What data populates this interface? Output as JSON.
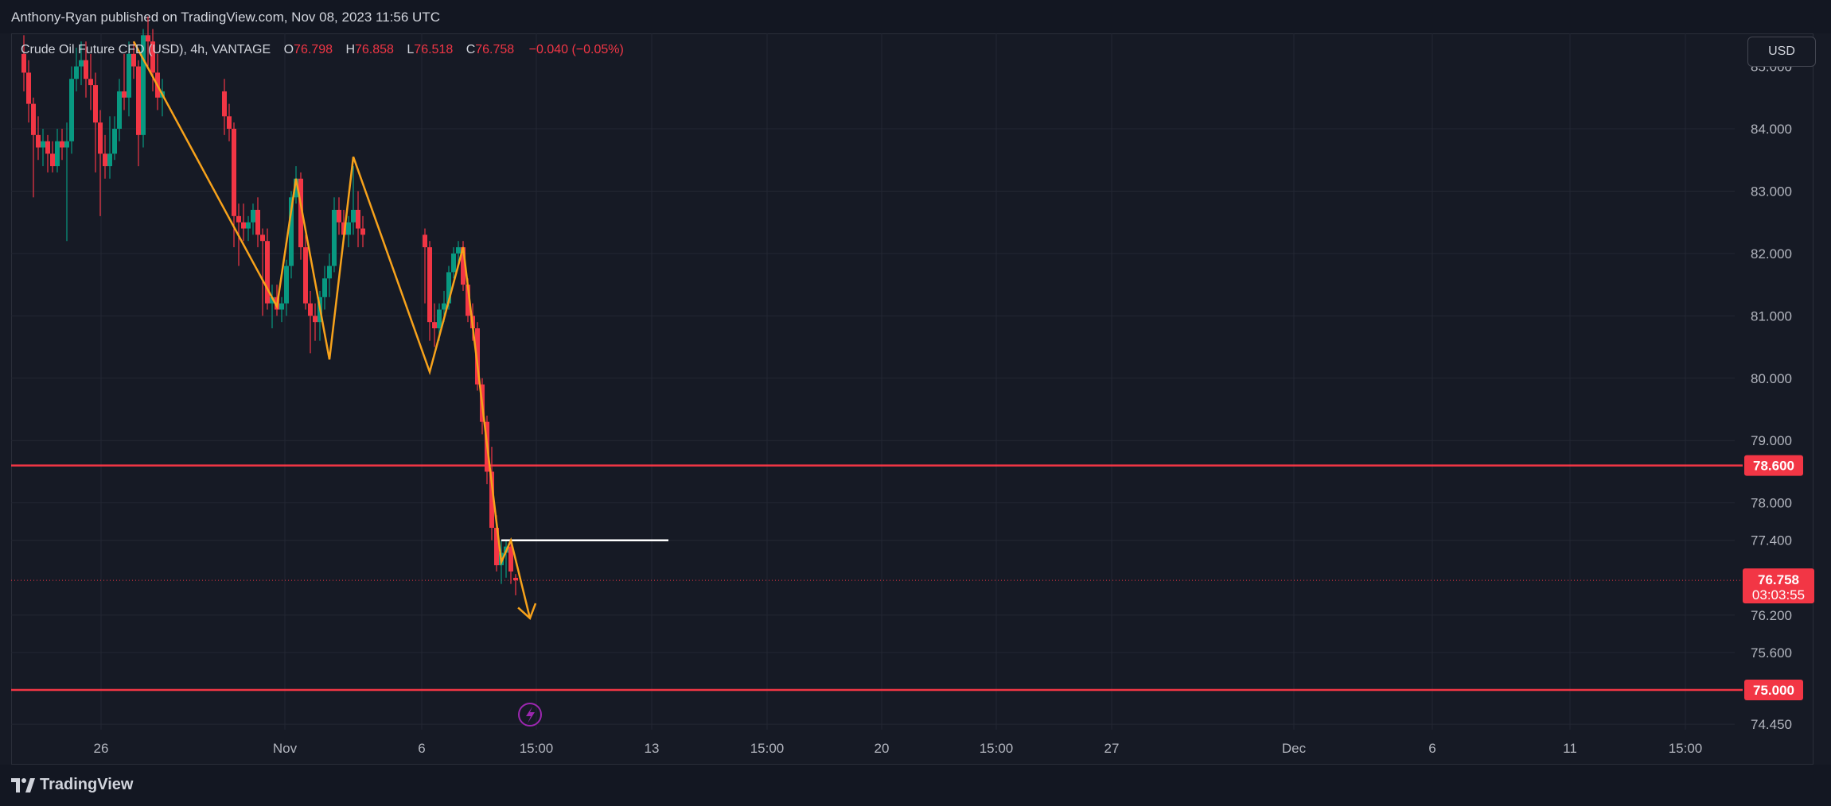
{
  "header": {
    "publisher": "Anthony-Ryan published on TradingView.com, Nov 08, 2023 11:56 UTC"
  },
  "legend": {
    "symbol": "Crude Oil Future CFD (USD), 4h, VANTAGE",
    "open_label": "O",
    "open": "76.798",
    "high_label": "H",
    "high": "76.858",
    "low_label": "L",
    "low": "76.518",
    "close_label": "C",
    "close": "76.758",
    "change": "−0.040 (−0.05%)"
  },
  "currency_button": "USD",
  "footer": {
    "brand": "TradingView"
  },
  "colors": {
    "up": "#089981",
    "down": "#f23645",
    "zigzag": "#f7a21b",
    "level": "#f23645",
    "white_line": "#ffffff",
    "alert": "#9c27b0"
  },
  "icons": [
    "tradingview-logo-icon",
    "lightning-alert-icon"
  ],
  "chart_data": {
    "type": "candlestick",
    "interval": "4h",
    "y_axis": {
      "ticks": [
        84.0,
        83.0,
        82.0,
        81.0,
        80.0,
        79.0,
        78.0,
        77.4,
        76.2,
        75.6,
        74.45
      ],
      "tick_labels": [
        "84.000",
        "83.000",
        "82.000",
        "81.000",
        "80.000",
        "79.000",
        "78.000",
        "77.400",
        "76.200",
        "75.600",
        "74.450"
      ],
      "partial_top_label": "85.000",
      "range": [
        74.1,
        85.5
      ]
    },
    "x_axis": {
      "tick_labels": [
        "26",
        "Nov",
        "6",
        "15:00",
        "13",
        "15:00",
        "20",
        "15:00",
        "27",
        "Dec",
        "6",
        "11",
        "15:00"
      ],
      "date_range": [
        "2023-10-23",
        "2023-12-18"
      ]
    },
    "horizontal_levels": [
      {
        "price": 78.6,
        "label": "78.600",
        "color": "#f23645"
      },
      {
        "price": 75.0,
        "label": "75.000",
        "color": "#f23645"
      }
    ],
    "current_price": {
      "price": 76.758,
      "label": "76.758",
      "countdown": "03:03:55"
    },
    "candles": [
      {
        "t": "2023-10-23 00:00",
        "o": 85.2,
        "h": 85.5,
        "l": 84.6,
        "c": 84.9
      },
      {
        "t": "2023-10-23 04:00",
        "o": 84.9,
        "h": 85.1,
        "l": 84.1,
        "c": 84.4
      },
      {
        "t": "2023-10-23 08:00",
        "o": 84.4,
        "h": 84.5,
        "l": 82.9,
        "c": 83.9
      },
      {
        "t": "2023-10-23 12:00",
        "o": 83.9,
        "h": 84.2,
        "l": 83.5,
        "c": 83.7
      },
      {
        "t": "2023-10-23 16:00",
        "o": 83.7,
        "h": 84.0,
        "l": 83.4,
        "c": 83.8
      },
      {
        "t": "2023-10-23 20:00",
        "o": 83.8,
        "h": 83.9,
        "l": 83.3,
        "c": 83.6
      },
      {
        "t": "2023-10-24 00:00",
        "o": 83.6,
        "h": 83.8,
        "l": 83.3,
        "c": 83.4
      },
      {
        "t": "2023-10-24 04:00",
        "o": 83.4,
        "h": 84.0,
        "l": 83.3,
        "c": 83.8
      },
      {
        "t": "2023-10-24 08:00",
        "o": 83.8,
        "h": 84.0,
        "l": 83.5,
        "c": 83.7
      },
      {
        "t": "2023-10-24 12:00",
        "o": 83.7,
        "h": 84.1,
        "l": 82.2,
        "c": 83.8
      },
      {
        "t": "2023-10-24 16:00",
        "o": 83.8,
        "h": 85.0,
        "l": 83.6,
        "c": 84.8
      },
      {
        "t": "2023-10-24 20:00",
        "o": 84.8,
        "h": 85.3,
        "l": 84.6,
        "c": 85.0
      },
      {
        "t": "2023-10-25 00:00",
        "o": 85.0,
        "h": 85.4,
        "l": 84.7,
        "c": 85.1
      },
      {
        "t": "2023-10-25 04:00",
        "o": 85.1,
        "h": 85.4,
        "l": 84.5,
        "c": 84.8
      },
      {
        "t": "2023-10-25 08:00",
        "o": 84.8,
        "h": 85.2,
        "l": 84.3,
        "c": 84.7
      },
      {
        "t": "2023-10-25 12:00",
        "o": 84.7,
        "h": 84.9,
        "l": 83.3,
        "c": 84.1
      },
      {
        "t": "2023-10-25 16:00",
        "o": 84.1,
        "h": 84.3,
        "l": 82.6,
        "c": 83.6
      },
      {
        "t": "2023-10-25 20:00",
        "o": 83.6,
        "h": 83.9,
        "l": 83.2,
        "c": 83.4
      },
      {
        "t": "2023-10-26 00:00",
        "o": 83.4,
        "h": 84.2,
        "l": 83.2,
        "c": 83.6
      },
      {
        "t": "2023-10-26 04:00",
        "o": 83.6,
        "h": 84.2,
        "l": 83.5,
        "c": 84.0
      },
      {
        "t": "2023-10-26 08:00",
        "o": 84.0,
        "h": 84.8,
        "l": 83.8,
        "c": 84.6
      },
      {
        "t": "2023-10-26 12:00",
        "o": 84.6,
        "h": 85.2,
        "l": 84.3,
        "c": 84.5
      },
      {
        "t": "2023-10-26 16:00",
        "o": 84.5,
        "h": 85.4,
        "l": 84.2,
        "c": 85.2
      },
      {
        "t": "2023-10-26 20:00",
        "o": 85.2,
        "h": 85.4,
        "l": 84.8,
        "c": 85.0
      },
      {
        "t": "2023-10-27 00:00",
        "o": 85.0,
        "h": 85.1,
        "l": 83.4,
        "c": 83.9
      },
      {
        "t": "2023-10-27 04:00",
        "o": 83.9,
        "h": 85.6,
        "l": 83.7,
        "c": 85.5
      },
      {
        "t": "2023-10-27 08:00",
        "o": 85.5,
        "h": 85.8,
        "l": 85.0,
        "c": 85.4
      },
      {
        "t": "2023-10-27 12:00",
        "o": 85.4,
        "h": 85.6,
        "l": 84.6,
        "c": 84.9
      },
      {
        "t": "2023-10-27 16:00",
        "o": 84.9,
        "h": 85.2,
        "l": 84.3,
        "c": 84.5
      },
      {
        "t": "2023-10-27 20:00",
        "o": 84.5,
        "h": 84.8,
        "l": 84.2,
        "c": 84.6
      },
      {
        "t": "2023-10-30 00:00",
        "o": 84.6,
        "h": 84.8,
        "l": 83.9,
        "c": 84.2
      },
      {
        "t": "2023-10-30 04:00",
        "o": 84.2,
        "h": 84.4,
        "l": 83.8,
        "c": 84.0
      },
      {
        "t": "2023-10-30 08:00",
        "o": 84.0,
        "h": 84.1,
        "l": 82.1,
        "c": 82.6
      },
      {
        "t": "2023-10-30 12:00",
        "o": 82.6,
        "h": 82.8,
        "l": 81.8,
        "c": 82.5
      },
      {
        "t": "2023-10-30 16:00",
        "o": 82.5,
        "h": 82.8,
        "l": 82.2,
        "c": 82.4
      },
      {
        "t": "2023-10-30 20:00",
        "o": 82.4,
        "h": 82.6,
        "l": 82.2,
        "c": 82.5
      },
      {
        "t": "2023-10-31 00:00",
        "o": 82.5,
        "h": 82.8,
        "l": 82.3,
        "c": 82.7
      },
      {
        "t": "2023-10-31 04:00",
        "o": 82.7,
        "h": 82.9,
        "l": 82.1,
        "c": 82.3
      },
      {
        "t": "2023-10-31 08:00",
        "o": 82.3,
        "h": 82.4,
        "l": 81.0,
        "c": 82.2
      },
      {
        "t": "2023-10-31 12:00",
        "o": 82.2,
        "h": 82.4,
        "l": 81.1,
        "c": 81.2
      },
      {
        "t": "2023-10-31 16:00",
        "o": 81.2,
        "h": 81.5,
        "l": 80.8,
        "c": 81.3
      },
      {
        "t": "2023-10-31 20:00",
        "o": 81.3,
        "h": 81.5,
        "l": 81.0,
        "c": 81.1
      },
      {
        "t": "2023-11-01 00:00",
        "o": 81.1,
        "h": 81.3,
        "l": 80.9,
        "c": 81.2
      },
      {
        "t": "2023-11-01 04:00",
        "o": 81.2,
        "h": 81.9,
        "l": 81.0,
        "c": 81.8
      },
      {
        "t": "2023-11-01 08:00",
        "o": 81.8,
        "h": 83.0,
        "l": 81.6,
        "c": 82.9
      },
      {
        "t": "2023-11-01 12:00",
        "o": 82.9,
        "h": 83.4,
        "l": 82.8,
        "c": 83.2
      },
      {
        "t": "2023-11-01 16:00",
        "o": 83.2,
        "h": 83.3,
        "l": 81.9,
        "c": 82.1
      },
      {
        "t": "2023-11-01 20:00",
        "o": 82.1,
        "h": 82.3,
        "l": 81.1,
        "c": 81.2
      },
      {
        "t": "2023-11-02 00:00",
        "o": 81.2,
        "h": 81.4,
        "l": 80.4,
        "c": 81.0
      },
      {
        "t": "2023-11-02 04:00",
        "o": 81.0,
        "h": 81.2,
        "l": 80.6,
        "c": 80.9
      },
      {
        "t": "2023-11-02 08:00",
        "o": 80.9,
        "h": 81.4,
        "l": 80.6,
        "c": 81.3
      },
      {
        "t": "2023-11-02 12:00",
        "o": 81.3,
        "h": 81.8,
        "l": 81.1,
        "c": 81.6
      },
      {
        "t": "2023-11-02 16:00",
        "o": 81.6,
        "h": 82.0,
        "l": 81.3,
        "c": 81.8
      },
      {
        "t": "2023-11-02 20:00",
        "o": 81.8,
        "h": 82.9,
        "l": 81.7,
        "c": 82.7
      },
      {
        "t": "2023-11-03 00:00",
        "o": 82.7,
        "h": 82.9,
        "l": 82.3,
        "c": 82.5
      },
      {
        "t": "2023-11-03 04:00",
        "o": 82.5,
        "h": 82.7,
        "l": 82.2,
        "c": 82.3
      },
      {
        "t": "2023-11-03 08:00",
        "o": 82.3,
        "h": 82.6,
        "l": 82.1,
        "c": 82.5
      },
      {
        "t": "2023-11-03 12:00",
        "o": 82.5,
        "h": 83.4,
        "l": 82.3,
        "c": 82.7
      },
      {
        "t": "2023-11-03 16:00",
        "o": 82.7,
        "h": 83.0,
        "l": 82.1,
        "c": 82.4
      },
      {
        "t": "2023-11-03 20:00",
        "o": 82.4,
        "h": 82.6,
        "l": 82.1,
        "c": 82.3
      },
      {
        "t": "2023-11-06 00:00",
        "o": 82.3,
        "h": 82.4,
        "l": 81.2,
        "c": 82.1
      },
      {
        "t": "2023-11-06 04:00",
        "o": 82.1,
        "h": 82.2,
        "l": 80.6,
        "c": 80.9
      },
      {
        "t": "2023-11-06 08:00",
        "o": 80.9,
        "h": 81.2,
        "l": 80.5,
        "c": 80.8
      },
      {
        "t": "2023-11-06 12:00",
        "o": 80.8,
        "h": 81.2,
        "l": 80.6,
        "c": 81.1
      },
      {
        "t": "2023-11-06 16:00",
        "o": 81.1,
        "h": 81.4,
        "l": 80.9,
        "c": 81.2
      },
      {
        "t": "2023-11-06 20:00",
        "o": 81.2,
        "h": 81.8,
        "l": 81.1,
        "c": 81.7
      },
      {
        "t": "2023-11-07 00:00",
        "o": 81.7,
        "h": 82.1,
        "l": 81.6,
        "c": 82.0
      },
      {
        "t": "2023-11-07 04:00",
        "o": 82.0,
        "h": 82.2,
        "l": 81.8,
        "c": 82.1
      },
      {
        "t": "2023-11-07 08:00",
        "o": 82.1,
        "h": 82.2,
        "l": 81.4,
        "c": 81.5
      },
      {
        "t": "2023-11-07 12:00",
        "o": 81.5,
        "h": 81.6,
        "l": 80.9,
        "c": 81.0
      },
      {
        "t": "2023-11-07 16:00",
        "o": 81.0,
        "h": 81.2,
        "l": 80.6,
        "c": 80.8
      },
      {
        "t": "2023-11-07 20:00",
        "o": 80.8,
        "h": 80.9,
        "l": 79.8,
        "c": 79.9
      },
      {
        "t": "2023-11-08 00:00",
        "o": 79.9,
        "h": 80.0,
        "l": 79.1,
        "c": 79.3
      },
      {
        "t": "2023-11-08 04:00",
        "o": 79.3,
        "h": 79.4,
        "l": 78.3,
        "c": 78.5
      },
      {
        "t": "2023-11-08 08:00",
        "o": 78.5,
        "h": 78.9,
        "l": 77.4,
        "c": 77.6
      },
      {
        "t": "2023-11-08 12:00",
        "o": 77.6,
        "h": 77.8,
        "l": 76.9,
        "c": 77.0
      },
      {
        "t": "2023-11-08 16:00",
        "o": 77.0,
        "h": 77.4,
        "l": 76.7,
        "c": 77.2
      },
      {
        "t": "2023-11-08 20:00",
        "o": 77.2,
        "h": 77.4,
        "l": 76.8,
        "c": 77.3
      },
      {
        "t": "2023-11-09 00:00",
        "o": 77.3,
        "h": 77.4,
        "l": 76.7,
        "c": 76.9
      },
      {
        "t": "2023-11-09 04:00",
        "o": 76.798,
        "h": 76.858,
        "l": 76.518,
        "c": 76.758
      }
    ],
    "zigzag": [
      {
        "t": "2023-10-26 20:00",
        "p": 85.4
      },
      {
        "t": "2023-10-31 20:00",
        "p": 81.15
      },
      {
        "t": "2023-11-01 12:00",
        "p": 83.2
      },
      {
        "t": "2023-11-02 16:00",
        "p": 80.3
      },
      {
        "t": "2023-11-03 12:00",
        "p": 83.55
      },
      {
        "t": "2023-11-06 04:00",
        "p": 80.1
      },
      {
        "t": "2023-11-07 08:00",
        "p": 82.1
      },
      {
        "t": "2023-11-08 16:00",
        "p": 77.05
      },
      {
        "t": "2023-11-09 00:00",
        "p": 77.4
      },
      {
        "t": "2023-11-09 16:00",
        "p": 76.15
      }
    ],
    "white_line": {
      "from": "2023-11-08 16:00",
      "to": "2023-11-14 12:00",
      "price": 77.4
    }
  }
}
